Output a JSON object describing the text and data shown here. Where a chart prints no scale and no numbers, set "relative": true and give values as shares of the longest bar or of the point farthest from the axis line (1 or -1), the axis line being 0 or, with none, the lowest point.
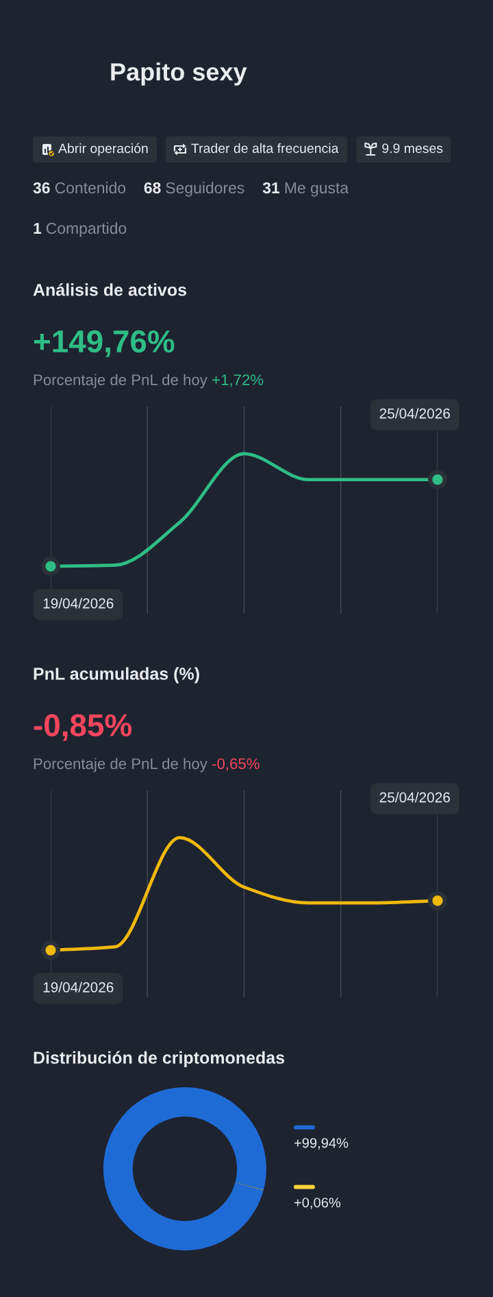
{
  "chart_data": [
    {
      "type": "other",
      "title": "Papito sexy",
      "annotations": [
        "Abrir operación",
        "Trader de alta frecuencia",
        "9.9 meses",
        "36 Contenido",
        "68 Seguidores",
        "31 Me gusta",
        "1 Compartido"
      ]
    },
    {
      "type": "line",
      "title": "Análisis de activos",
      "subtitle": "+149,76%",
      "relative": true,
      "categories": [
        null,
        null,
        null,
        null,
        null,
        null,
        null
      ],
      "series": [
        {
          "color": "#2ebd85",
          "values": [
            0,
            0.01,
            0.39,
            1,
            0.77,
            0.77,
            0.77
          ]
        }
      ],
      "grid": "x",
      "annotations": [
        "Porcentaje de PnL de hoy +1,72%",
        {
          "text": "19/04/2026",
          "y": 0
        },
        "25/04/2026"
      ]
    },
    {
      "type": "line",
      "title": "PnL acumuladas (%)",
      "subtitle": "-0,85%",
      "relative": true,
      "categories": [
        null,
        null,
        null,
        null,
        null,
        null,
        null
      ],
      "series": [
        {
          "color": "#f0b90b",
          "values": [
            0,
            0.03,
            1,
            0.56,
            0.42,
            0.42,
            0.44
          ]
        }
      ],
      "grid": "x",
      "annotations": [
        "Porcentaje de PnL de hoy -0,65%",
        {
          "text": "19/04/2026",
          "y": 0
        },
        "25/04/2026"
      ]
    },
    {
      "type": "donut",
      "title": "Distribución de criptomonedas",
      "categories": [
        null,
        null
      ],
      "values": [
        99.94,
        0.06
      ],
      "colors": [
        "#1f6bd6",
        "#fcd535"
      ],
      "value_labels": [
        "+99,94%",
        "+0,06%"
      ]
    }
  ]
}
